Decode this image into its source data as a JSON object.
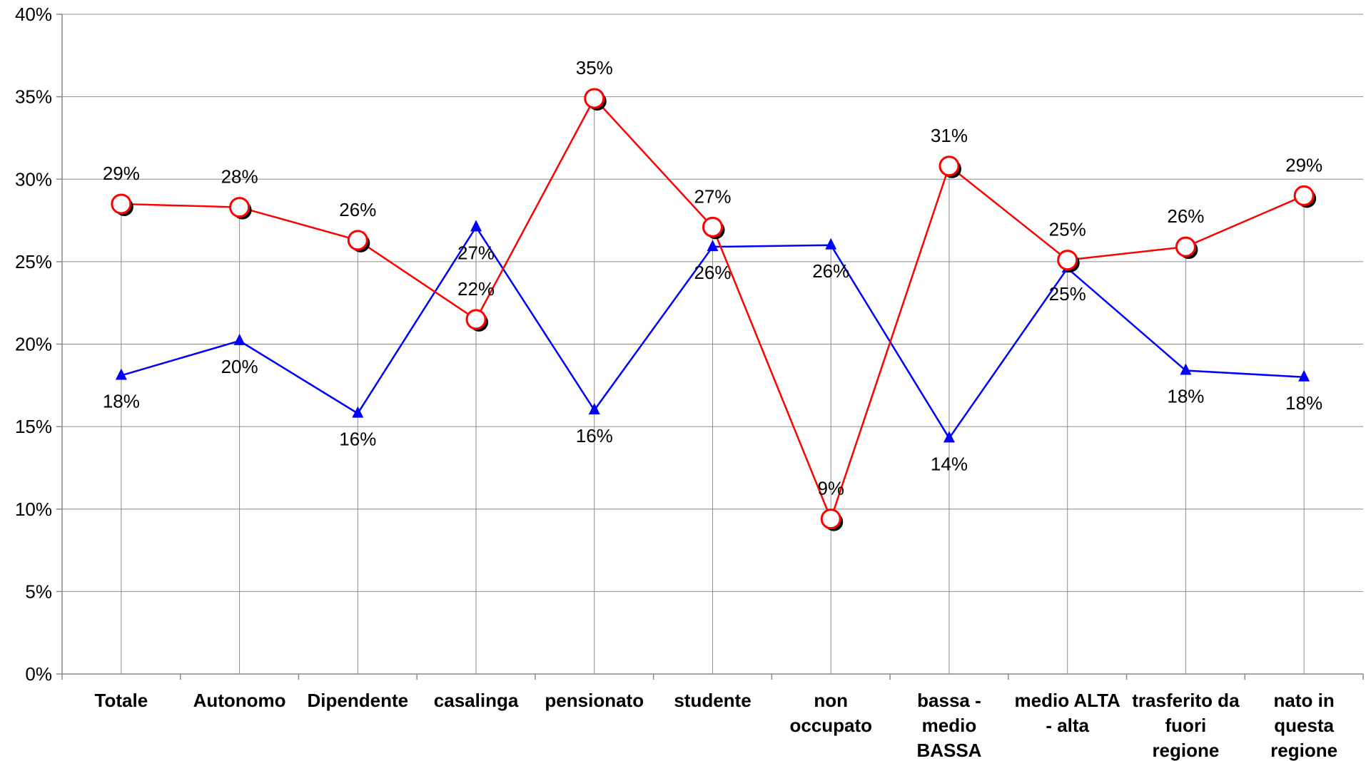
{
  "chart_data": {
    "type": "line",
    "categories": [
      [
        "Totale"
      ],
      [
        "Autonomo"
      ],
      [
        "Dipendente"
      ],
      [
        "casalinga"
      ],
      [
        "pensionato"
      ],
      [
        "studente"
      ],
      [
        "non",
        "occupato"
      ],
      [
        "bassa -",
        "medio",
        "BASSA"
      ],
      [
        "medio ALTA",
        "- alta"
      ],
      [
        "trasferito da",
        "fuori",
        "regione"
      ],
      [
        "nato in",
        "questa",
        "regione"
      ]
    ],
    "ylim": [
      0,
      40
    ],
    "ytick_step": 5,
    "ytick_labels": [
      "0%",
      "5%",
      "10%",
      "15%",
      "20%",
      "25%",
      "30%",
      "35%",
      "40%"
    ],
    "grid": true,
    "series": [
      {
        "marker": "circle",
        "color": "#ff0000",
        "values": [
          28.5,
          28.3,
          26.3,
          21.5,
          34.9,
          27.1,
          9.4,
          30.8,
          25.1,
          25.9,
          29.0
        ],
        "labels": [
          "29%",
          "28%",
          "26%",
          "22%",
          "35%",
          "27%",
          "9%",
          "31%",
          "25%",
          "26%",
          "29%"
        ]
      },
      {
        "marker": "triangle",
        "color": "#0000ff",
        "values": [
          18.1,
          20.2,
          15.8,
          27.1,
          16.0,
          25.9,
          26.0,
          14.3,
          24.6,
          18.4,
          18.0
        ],
        "labels": [
          "18%",
          "20%",
          "16%",
          "27%",
          "16%",
          "26%",
          "26%",
          "14%",
          "25%",
          "18%",
          "18%"
        ]
      }
    ]
  }
}
